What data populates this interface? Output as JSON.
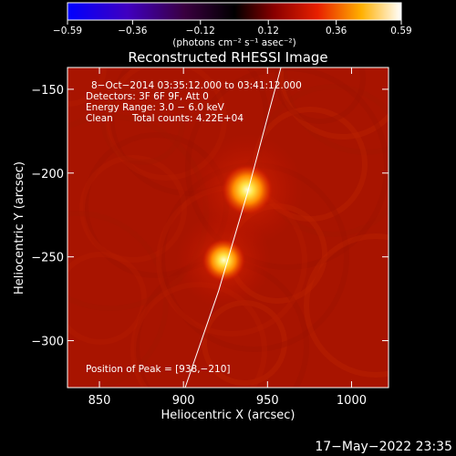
{
  "chart_data": {
    "type": "heatmap",
    "title": "Reconstructed RHESSI Image",
    "xlabel": "Heliocentric X (arcsec)",
    "ylabel": "Heliocentric Y (arcsec)",
    "xlim": [
      831,
      1022
    ],
    "ylim": [
      -328,
      -137
    ],
    "xticks": [
      {
        "value": 850,
        "label": "850"
      },
      {
        "value": 900,
        "label": "900"
      },
      {
        "value": 950,
        "label": "950"
      },
      {
        "value": 1000,
        "label": "1000"
      }
    ],
    "yticks": [
      {
        "value": -150,
        "label": "−150"
      },
      {
        "value": -200,
        "label": "−200"
      },
      {
        "value": -250,
        "label": "−250"
      },
      {
        "value": -300,
        "label": "−300"
      }
    ],
    "sources": [
      {
        "x": 938,
        "y": -210,
        "peak": 0.59
      },
      {
        "x": 924,
        "y": -252,
        "peak": 0.5
      }
    ],
    "background_level": 0.2,
    "limb_points": [
      [
        901,
        -328
      ],
      [
        921,
        -270
      ],
      [
        938,
        -212
      ],
      [
        951,
        -163
      ],
      [
        958,
        -137
      ]
    ],
    "colorbar": {
      "colormap": "hot",
      "range": [
        -0.59,
        0.59
      ],
      "ticks": [
        {
          "value": -0.59,
          "label": "−0.59"
        },
        {
          "value": -0.36,
          "label": "−0.36"
        },
        {
          "value": -0.12,
          "label": "−0.12"
        },
        {
          "value": 0.12,
          "label": "0.12"
        },
        {
          "value": 0.36,
          "label": "0.36"
        },
        {
          "value": 0.59,
          "label": "0.59"
        }
      ],
      "units": "(photons cm⁻² s⁻¹ asec⁻²)"
    },
    "annotations": {
      "time_range": "8−Oct−2014 03:35:12.000 to 03:41:12.000",
      "detectors": "Detectors: 3F 6F 9F, Att 0",
      "energy_range": "Energy Range: 3.0 − 6.0 keV",
      "algorithm": "Clean",
      "total_counts": "Total counts: 4.22E+04",
      "peak_position": "Position of Peak = [938,−210]"
    },
    "date_stamp": "17−May−2022 23:35"
  }
}
